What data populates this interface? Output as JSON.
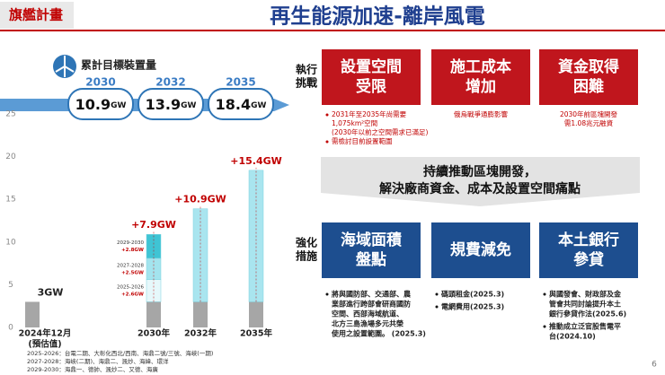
{
  "header": {
    "tag": "旗艦計畫",
    "title": "再生能源加速-離岸風電"
  },
  "target_panel": {
    "label": "累計目標裝置量",
    "targets": [
      {
        "year": "2030",
        "value": "10.9",
        "unit": "GW"
      },
      {
        "year": "2032",
        "value": "13.9",
        "unit": "GW"
      },
      {
        "year": "2035",
        "value": "18.4",
        "unit": "GW"
      }
    ]
  },
  "chart_data": {
    "type": "stacked_bar",
    "categories": [
      "2024年12月",
      "2030年",
      "2032年",
      "2035年"
    ],
    "category_note": "(預估值)",
    "ylim": [
      0,
      25
    ],
    "yticks": [
      0,
      5,
      10,
      15,
      20,
      25
    ],
    "grid": false,
    "series": [
      {
        "color": "#a6a6a6",
        "values": [
          3,
          3,
          3,
          3
        ]
      },
      {
        "name": "2025-2026",
        "color": "#e6f8fb",
        "values": [
          null,
          2.6,
          null,
          null
        ],
        "value_labels": [
          null,
          "+2.6GW",
          null,
          null
        ]
      },
      {
        "name": "2027-2028",
        "color": "#a3e4ee",
        "values": [
          null,
          2.5,
          null,
          null
        ],
        "value_labels": [
          null,
          "+2.5GW",
          null,
          null
        ]
      },
      {
        "name": "2029-2030",
        "color": "#3fc4d4",
        "values": [
          null,
          2.8,
          null,
          null
        ],
        "value_labels": [
          null,
          "+2.8GW",
          null,
          null
        ]
      },
      {
        "color": "#a9e5ef",
        "values": [
          null,
          null,
          10.9,
          15.4
        ]
      }
    ],
    "bar_labels": [
      "3GW",
      "+7.9GW",
      "+10.9GW",
      "+15.4GW"
    ]
  },
  "challenges": {
    "label": [
      "執行",
      "挑戰"
    ],
    "items": [
      {
        "title": [
          "設置空間",
          "受限"
        ],
        "align": "left",
        "notes": [
          {
            "lines": [
              "2031年至2035年尚需要",
              "1,075km²空間",
              "(2030年以前之空間需求已滿足)"
            ]
          },
          {
            "lines": [
              "需檢討目前設置範圍"
            ]
          }
        ]
      },
      {
        "title": [
          "施工成本",
          "增加"
        ],
        "align": "center",
        "notes": [
          {
            "lines": [
              "俄烏戰爭通膨影響"
            ]
          }
        ]
      },
      {
        "title": [
          "資金取得",
          "困難"
        ],
        "align": "center",
        "notes": [
          {
            "lines": [
              "2030年前區塊開發",
              "需1.08兆元融資"
            ]
          }
        ]
      }
    ]
  },
  "middle": [
    "持續推動區塊開發，",
    "解決廠商資金、成本及設置空間痛點"
  ],
  "measures": {
    "label": [
      "強化",
      "措施"
    ],
    "items": [
      {
        "title": [
          "海域面積",
          "盤點"
        ],
        "notes": [
          {
            "lines": [
              "將與國防部、交通部、農",
              "業部進行跨部會研商國防",
              "空間、西部海域航道、",
              "北方三島漁場多元共榮",
              "使用之設置範圍。 (2025.3)"
            ]
          }
        ]
      },
      {
        "title": [
          "規費減免"
        ],
        "notes": [
          {
            "lines": [
              "碼頭租金(2025.3)"
            ]
          },
          {
            "lines": [
              "電網費用(2025.3)"
            ]
          }
        ]
      },
      {
        "title": [
          "本土銀行",
          "參貸"
        ],
        "notes": [
          {
            "lines": [
              "與國發會、財政部及金",
              "管會共同討論提升本土",
              "銀行參貸作法(2025.6)"
            ]
          },
          {
            "lines": [
              "推動成立泛官股售電平",
              "台(2024.10)"
            ]
          }
        ]
      }
    ]
  },
  "footnotes": [
    "2025-2026：台電二期、大彰化西北/西南、海鼎二號/三號、海峽(一期)",
    "2027-2028：海峽(二期)、海鼎二、渢妙、海緯、環洋",
    "2029-2030：海鼎一、德帥、渢妙二、又德、海廣"
  ],
  "page_number": "6"
}
